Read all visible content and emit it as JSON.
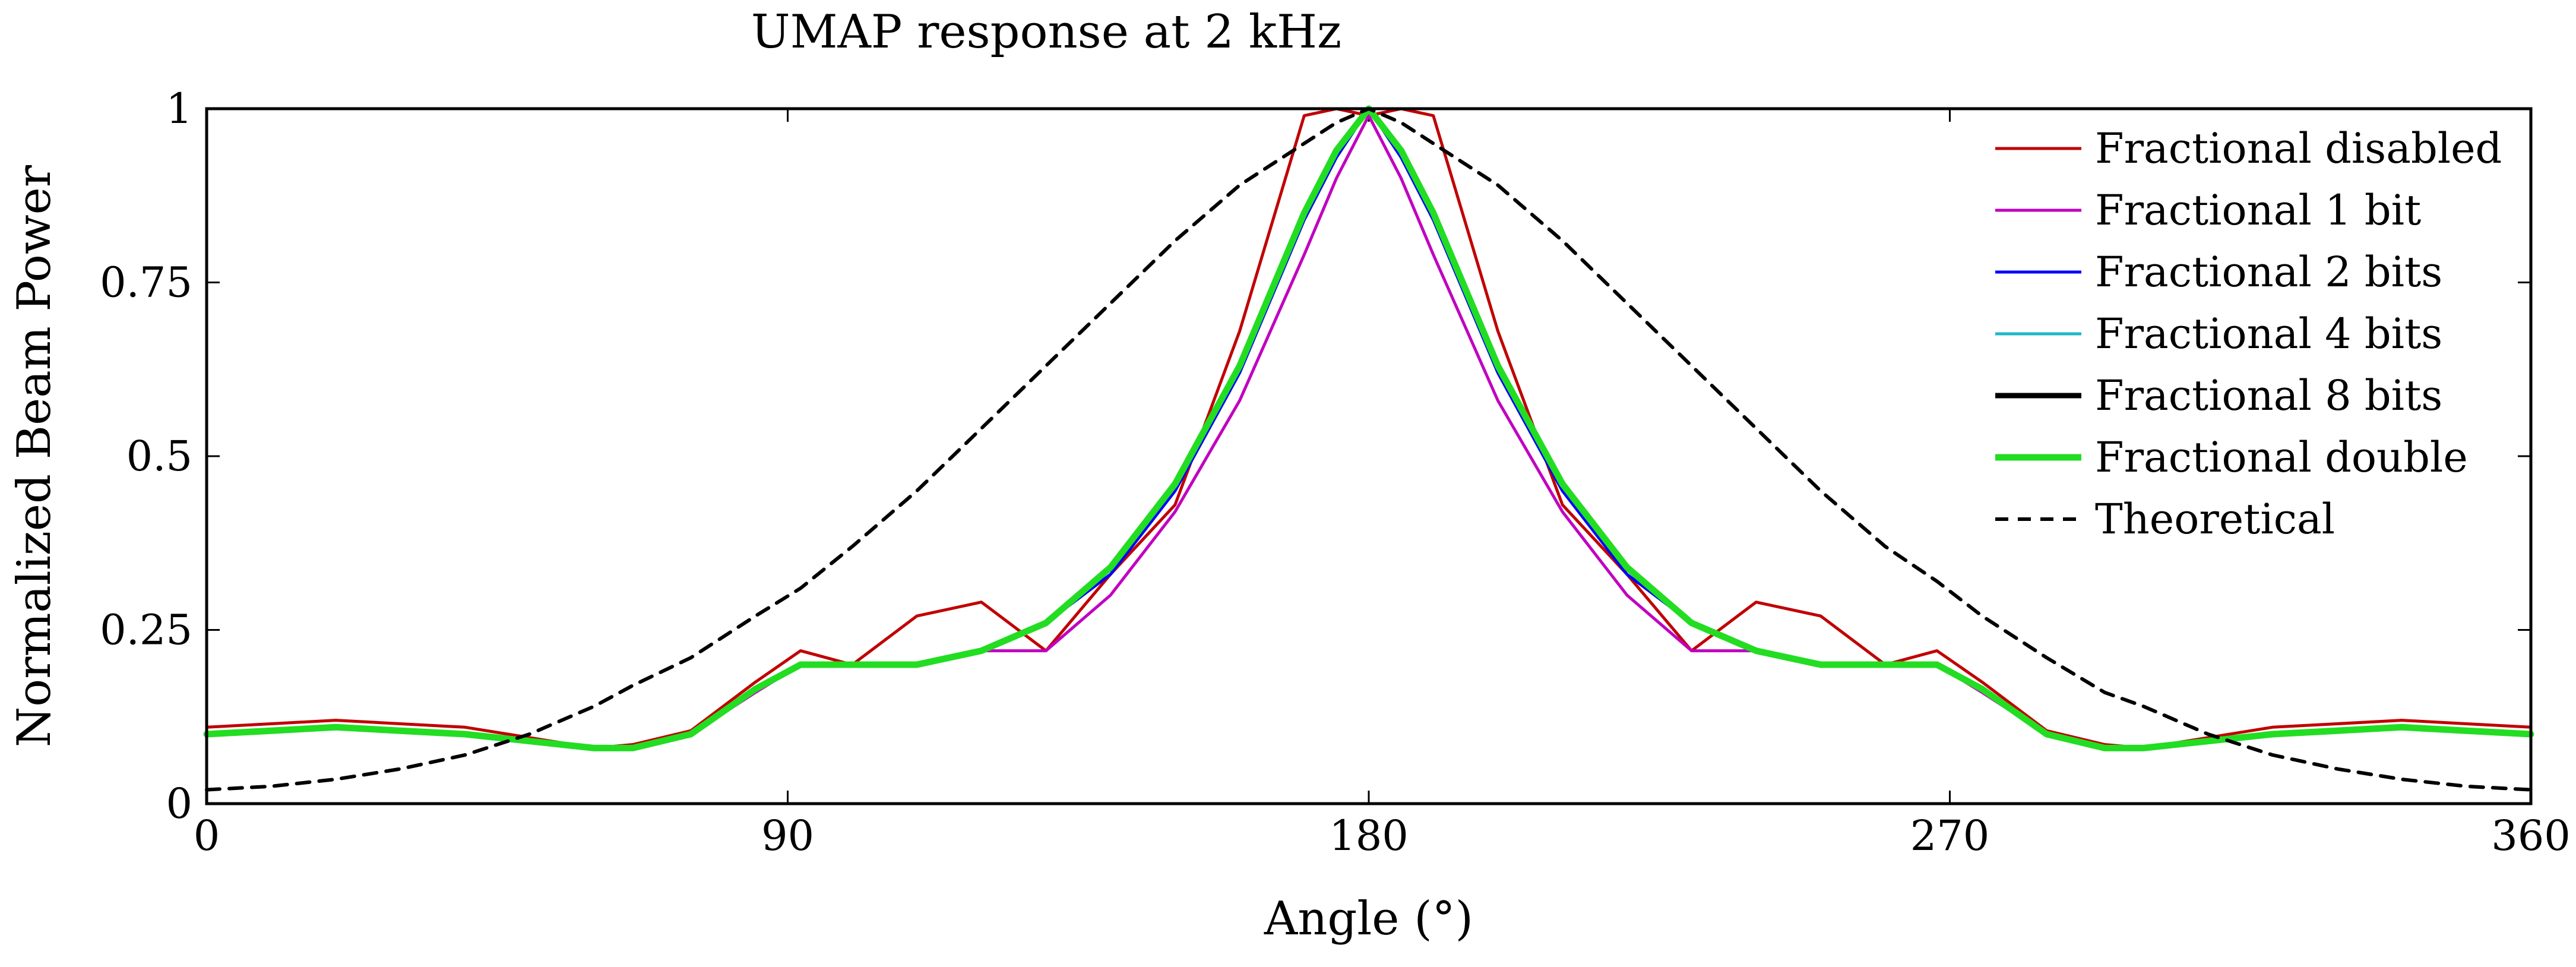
{
  "chart_data": {
    "type": "line",
    "title": "UMAP response at 2 kHz",
    "xlabel": "Angle (°)",
    "ylabel": "Normalized Beam Power",
    "xlim": [
      0,
      360
    ],
    "ylim": [
      0,
      1
    ],
    "xticks": [
      0,
      90,
      180,
      270,
      360
    ],
    "yticks": [
      0,
      0.25,
      0.5,
      0.75,
      1
    ],
    "ytick_labels": [
      "0",
      "0.25",
      "0.5",
      "0.75",
      "1"
    ],
    "legend_position": "top-right",
    "x": [
      0,
      10,
      20,
      30,
      40,
      50,
      60,
      66,
      75,
      85,
      92,
      100,
      110,
      120,
      130,
      140,
      150,
      160,
      170,
      175,
      180,
      185,
      190,
      200,
      210,
      220,
      230,
      240,
      250,
      260,
      268,
      275,
      285,
      294,
      300,
      310,
      320,
      330,
      340,
      350,
      360
    ],
    "series": [
      {
        "name": "Fractional disabled",
        "color": "#c00000",
        "width": 5,
        "dash": "",
        "values": [
          0.11,
          0.115,
          0.12,
          0.115,
          0.11,
          0.095,
          0.08,
          0.085,
          0.105,
          0.175,
          0.22,
          0.2,
          0.27,
          0.29,
          0.22,
          0.33,
          0.43,
          0.68,
          0.99,
          1.0,
          0.99,
          1.0,
          0.99,
          0.68,
          0.43,
          0.33,
          0.22,
          0.29,
          0.27,
          0.2,
          0.22,
          0.175,
          0.105,
          0.085,
          0.08,
          0.095,
          0.11,
          0.115,
          0.12,
          0.115,
          0.11
        ]
      },
      {
        "name": "Fractional 1 bit",
        "color": "#c000c0",
        "width": 5,
        "dash": "",
        "values": [
          0.1,
          0.105,
          0.11,
          0.105,
          0.1,
          0.09,
          0.08,
          0.08,
          0.1,
          0.16,
          0.2,
          0.2,
          0.2,
          0.22,
          0.22,
          0.3,
          0.42,
          0.58,
          0.79,
          0.9,
          0.99,
          0.9,
          0.79,
          0.58,
          0.42,
          0.3,
          0.22,
          0.22,
          0.2,
          0.2,
          0.2,
          0.16,
          0.1,
          0.08,
          0.08,
          0.09,
          0.1,
          0.105,
          0.11,
          0.105,
          0.1
        ]
      },
      {
        "name": "Fractional 2 bits",
        "color": "#0000ff",
        "width": 5,
        "dash": "",
        "values": [
          0.1,
          0.105,
          0.11,
          0.105,
          0.1,
          0.09,
          0.08,
          0.08,
          0.1,
          0.165,
          0.2,
          0.2,
          0.2,
          0.22,
          0.26,
          0.33,
          0.45,
          0.62,
          0.84,
          0.93,
          1.0,
          0.93,
          0.84,
          0.62,
          0.45,
          0.33,
          0.26,
          0.22,
          0.2,
          0.2,
          0.2,
          0.165,
          0.1,
          0.08,
          0.08,
          0.09,
          0.1,
          0.105,
          0.11,
          0.105,
          0.1
        ]
      },
      {
        "name": "Fractional 4 bits",
        "color": "#1cb8c8",
        "width": 5,
        "dash": "",
        "values": [
          0.1,
          0.105,
          0.11,
          0.105,
          0.1,
          0.09,
          0.08,
          0.08,
          0.1,
          0.165,
          0.2,
          0.2,
          0.2,
          0.22,
          0.26,
          0.34,
          0.46,
          0.63,
          0.85,
          0.94,
          1.0,
          0.94,
          0.85,
          0.63,
          0.46,
          0.34,
          0.26,
          0.22,
          0.2,
          0.2,
          0.2,
          0.165,
          0.1,
          0.08,
          0.08,
          0.09,
          0.1,
          0.105,
          0.11,
          0.105,
          0.1
        ]
      },
      {
        "name": "Fractional 8 bits",
        "color": "#000000",
        "width": 9,
        "dash": "",
        "values": [
          0.1,
          0.105,
          0.11,
          0.105,
          0.1,
          0.09,
          0.08,
          0.08,
          0.1,
          0.165,
          0.2,
          0.2,
          0.2,
          0.22,
          0.26,
          0.34,
          0.46,
          0.63,
          0.85,
          0.94,
          1.0,
          0.94,
          0.85,
          0.63,
          0.46,
          0.34,
          0.26,
          0.22,
          0.2,
          0.2,
          0.2,
          0.165,
          0.1,
          0.08,
          0.08,
          0.09,
          0.1,
          0.105,
          0.11,
          0.105,
          0.1
        ]
      },
      {
        "name": "Fractional double",
        "color": "#22dd22",
        "width": 11,
        "dash": "",
        "values": [
          0.1,
          0.105,
          0.11,
          0.105,
          0.1,
          0.09,
          0.08,
          0.08,
          0.1,
          0.165,
          0.2,
          0.2,
          0.2,
          0.22,
          0.26,
          0.34,
          0.46,
          0.63,
          0.85,
          0.94,
          1.0,
          0.94,
          0.85,
          0.63,
          0.46,
          0.34,
          0.26,
          0.22,
          0.2,
          0.2,
          0.2,
          0.165,
          0.1,
          0.08,
          0.08,
          0.09,
          0.1,
          0.105,
          0.11,
          0.105,
          0.1
        ]
      },
      {
        "name": "Theoretical",
        "color": "#000000",
        "width": 6,
        "dash": "22 16",
        "values": [
          0.02,
          0.025,
          0.035,
          0.05,
          0.07,
          0.1,
          0.14,
          0.17,
          0.21,
          0.27,
          0.31,
          0.37,
          0.45,
          0.54,
          0.63,
          0.72,
          0.81,
          0.89,
          0.95,
          0.98,
          1.0,
          0.98,
          0.95,
          0.89,
          0.81,
          0.72,
          0.63,
          0.54,
          0.45,
          0.37,
          0.32,
          0.27,
          0.21,
          0.16,
          0.14,
          0.1,
          0.07,
          0.05,
          0.035,
          0.025,
          0.02
        ]
      }
    ]
  }
}
